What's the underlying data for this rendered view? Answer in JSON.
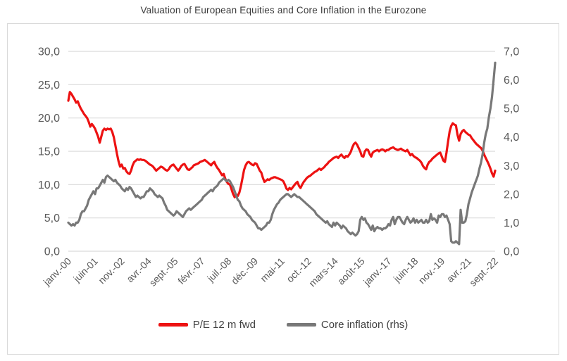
{
  "title": "Valuation of European Equities and Core Inflation in the Eurozone",
  "colors": {
    "pe_line": "#ed1212",
    "core_line": "#787878",
    "grid": "#d9d9d9",
    "axis_text": "#595959",
    "title_text": "#3a3a3a",
    "legend_text": "#404040",
    "box_border": "#d9d9d9"
  },
  "chart_data": {
    "type": "line",
    "title": "Valuation of European Equities and Core Inflation in the Eurozone",
    "x_unit": "monthly, janv.-00 to sept.-22",
    "x_tick_labels": [
      "janv.-00",
      "juin-01",
      "nov.-02",
      "avr.-04",
      "sept.-05",
      "févr.-07",
      "juil.-08",
      "déc.-09",
      "mai-11",
      "oct.-12",
      "mars-14",
      "août-15",
      "janv.-17",
      "juin-18",
      "nov.-19",
      "avr.-21",
      "sept.-22"
    ],
    "x_tick_interval_months": 17,
    "left_axis": {
      "tick_labels": [
        "0,0",
        "5,0",
        "10,0",
        "15,0",
        "20,0",
        "25,0",
        "30,0"
      ],
      "tick_values": [
        0,
        5,
        10,
        15,
        20,
        25,
        30
      ],
      "range": [
        0,
        30
      ]
    },
    "right_axis": {
      "tick_labels": [
        "0,0",
        "1,0",
        "2,0",
        "3,0",
        "4,0",
        "5,0",
        "6,0",
        "7,0"
      ],
      "tick_values": [
        0,
        1,
        2,
        3,
        4,
        5,
        6,
        7
      ],
      "range": [
        0,
        7
      ]
    },
    "grid": "horizontal-only",
    "legend_position": "bottom-center",
    "series": [
      {
        "name": "P/E 12 m fwd",
        "axis": "left",
        "color": "#ed1212",
        "values": [
          22.6,
          23.9,
          23.6,
          23.2,
          22.8,
          22.3,
          22.5,
          21.9,
          21.4,
          21.0,
          20.6,
          20.3,
          20.0,
          19.4,
          18.7,
          19.1,
          18.8,
          18.4,
          17.8,
          17.2,
          16.3,
          17.2,
          18.1,
          18.4,
          18.2,
          18.4,
          18.3,
          18.4,
          17.9,
          17.1,
          15.9,
          14.6,
          13.5,
          12.7,
          13.0,
          12.4,
          12.5,
          12.0,
          11.7,
          11.6,
          12.1,
          12.9,
          13.4,
          13.6,
          13.8,
          13.7,
          13.8,
          13.7,
          13.7,
          13.6,
          13.4,
          13.2,
          13.0,
          12.9,
          12.7,
          12.4,
          12.1,
          12.3,
          12.5,
          12.7,
          12.6,
          12.4,
          12.2,
          12.1,
          12.3,
          12.7,
          12.9,
          13.0,
          12.7,
          12.4,
          12.1,
          12.4,
          12.8,
          13.0,
          13.1,
          12.7,
          12.3,
          12.2,
          12.4,
          12.6,
          12.9,
          13.0,
          13.1,
          13.2,
          13.4,
          13.5,
          13.6,
          13.7,
          13.5,
          13.3,
          13.1,
          12.9,
          13.2,
          13.4,
          12.9,
          12.5,
          12.2,
          11.8,
          11.4,
          11.6,
          10.9,
          10.4,
          10.1,
          10.0,
          9.3,
          8.6,
          8.1,
          8.5,
          8.3,
          8.8,
          9.8,
          11.0,
          12.2,
          12.9,
          13.3,
          13.4,
          13.2,
          13.0,
          12.9,
          13.2,
          13.1,
          12.6,
          12.1,
          11.8,
          11.0,
          10.4,
          10.6,
          10.8,
          10.7,
          10.9,
          11.0,
          11.1,
          11.1,
          11.0,
          10.9,
          10.8,
          10.7,
          10.5,
          10.0,
          9.4,
          9.2,
          9.5,
          9.3,
          9.6,
          9.9,
          10.2,
          10.4,
          9.8,
          9.5,
          10.0,
          10.4,
          10.7,
          11.0,
          11.2,
          11.3,
          11.5,
          11.7,
          11.9,
          12.0,
          12.2,
          12.4,
          12.2,
          12.4,
          12.6,
          12.9,
          13.1,
          13.4,
          13.6,
          13.8,
          14.0,
          14.1,
          14.2,
          14.0,
          14.3,
          14.5,
          14.2,
          14.0,
          14.3,
          14.2,
          14.5,
          14.9,
          15.6,
          16.1,
          16.3,
          16.0,
          15.5,
          15.0,
          14.3,
          14.2,
          15.0,
          15.3,
          15.2,
          14.6,
          14.2,
          14.8,
          15.0,
          15.1,
          15.2,
          15.0,
          15.2,
          15.3,
          15.2,
          15.0,
          15.2,
          15.2,
          15.4,
          15.5,
          15.6,
          15.4,
          15.3,
          15.2,
          15.3,
          15.4,
          15.2,
          15.1,
          15.0,
          15.2,
          14.8,
          14.4,
          14.6,
          14.3,
          14.1,
          14.0,
          13.8,
          13.6,
          13.3,
          12.8,
          12.5,
          12.3,
          13.0,
          13.4,
          13.6,
          13.9,
          14.1,
          14.3,
          14.5,
          14.7,
          14.8,
          14.2,
          13.6,
          13.4,
          14.8,
          16.5,
          18.0,
          18.8,
          19.2,
          19.0,
          18.9,
          17.5,
          16.6,
          17.6,
          18.0,
          18.2,
          17.9,
          17.7,
          17.5,
          17.4,
          17.0,
          16.7,
          16.4,
          16.1,
          15.9,
          15.7,
          15.5,
          15.1,
          14.5,
          14.0,
          13.5,
          13.0,
          12.4,
          11.7,
          11.2,
          12.1
        ]
      },
      {
        "name": "Core inflation (rhs)",
        "axis": "right",
        "color": "#787878",
        "values": [
          1.0,
          0.95,
          0.9,
          0.95,
          0.9,
          1.0,
          1.0,
          1.1,
          1.3,
          1.4,
          1.4,
          1.5,
          1.6,
          1.8,
          1.9,
          2.0,
          2.1,
          2.0,
          2.2,
          2.2,
          2.3,
          2.4,
          2.5,
          2.4,
          2.6,
          2.65,
          2.6,
          2.55,
          2.5,
          2.45,
          2.5,
          2.4,
          2.35,
          2.3,
          2.2,
          2.15,
          2.1,
          2.2,
          2.15,
          2.25,
          2.2,
          2.1,
          2.0,
          1.9,
          1.95,
          1.9,
          1.85,
          1.9,
          1.9,
          2.0,
          2.1,
          2.1,
          2.2,
          2.15,
          2.1,
          2.0,
          1.95,
          1.9,
          1.95,
          1.9,
          1.85,
          1.7,
          1.6,
          1.45,
          1.4,
          1.35,
          1.3,
          1.25,
          1.3,
          1.4,
          1.35,
          1.3,
          1.25,
          1.2,
          1.3,
          1.4,
          1.45,
          1.5,
          1.45,
          1.5,
          1.55,
          1.6,
          1.65,
          1.7,
          1.75,
          1.8,
          1.9,
          1.95,
          2.0,
          2.05,
          2.1,
          2.15,
          2.1,
          2.2,
          2.25,
          2.3,
          2.4,
          2.45,
          2.5,
          2.55,
          2.5,
          2.45,
          2.5,
          2.45,
          2.35,
          2.25,
          2.1,
          1.95,
          1.8,
          1.75,
          1.6,
          1.5,
          1.45,
          1.4,
          1.3,
          1.25,
          1.2,
          1.1,
          1.05,
          1.0,
          0.9,
          0.8,
          0.8,
          0.75,
          0.8,
          0.85,
          0.9,
          1.0,
          1.0,
          1.1,
          1.3,
          1.45,
          1.55,
          1.65,
          1.7,
          1.8,
          1.85,
          1.9,
          1.95,
          2.0,
          2.0,
          1.95,
          1.9,
          1.95,
          2.0,
          1.95,
          1.9,
          1.9,
          1.85,
          1.8,
          1.75,
          1.7,
          1.65,
          1.6,
          1.55,
          1.5,
          1.45,
          1.4,
          1.3,
          1.25,
          1.2,
          1.15,
          1.1,
          1.05,
          1.0,
          1.05,
          0.95,
          0.9,
          0.85,
          1.0,
          0.9,
          1.0,
          0.95,
          0.9,
          0.8,
          0.9,
          0.85,
          0.8,
          0.7,
          0.65,
          0.6,
          0.65,
          0.6,
          0.55,
          0.6,
          0.7,
          1.1,
          1.2,
          1.1,
          1.15,
          1.0,
          0.95,
          0.85,
          0.75,
          0.9,
          0.7,
          0.8,
          0.85,
          0.8,
          0.8,
          0.75,
          0.8,
          0.8,
          0.85,
          0.95,
          0.9,
          1.1,
          1.2,
          0.95,
          1.1,
          1.2,
          1.2,
          1.1,
          1.0,
          0.95,
          1.1,
          1.2,
          1.1,
          1.0,
          1.05,
          1.15,
          1.0,
          1.1,
          1.0,
          1.05,
          1.1,
          1.0,
          1.0,
          1.1,
          1.0,
          1.05,
          1.3,
          1.1,
          1.15,
          1.1,
          1.0,
          1.25,
          1.2,
          1.3,
          1.3,
          1.2,
          1.25,
          1.1,
          0.95,
          0.35,
          0.3,
          0.3,
          0.35,
          0.3,
          0.25,
          1.45,
          1.0,
          1.0,
          1.05,
          1.3,
          1.65,
          1.85,
          2.05,
          2.2,
          2.35,
          2.5,
          2.65,
          2.9,
          3.1,
          3.4,
          3.8,
          4.1,
          4.3,
          4.7,
          5.0,
          5.4,
          6.0,
          6.6
        ]
      }
    ],
    "legend": [
      "P/E 12 m fwd",
      "Core inflation (rhs)"
    ]
  }
}
